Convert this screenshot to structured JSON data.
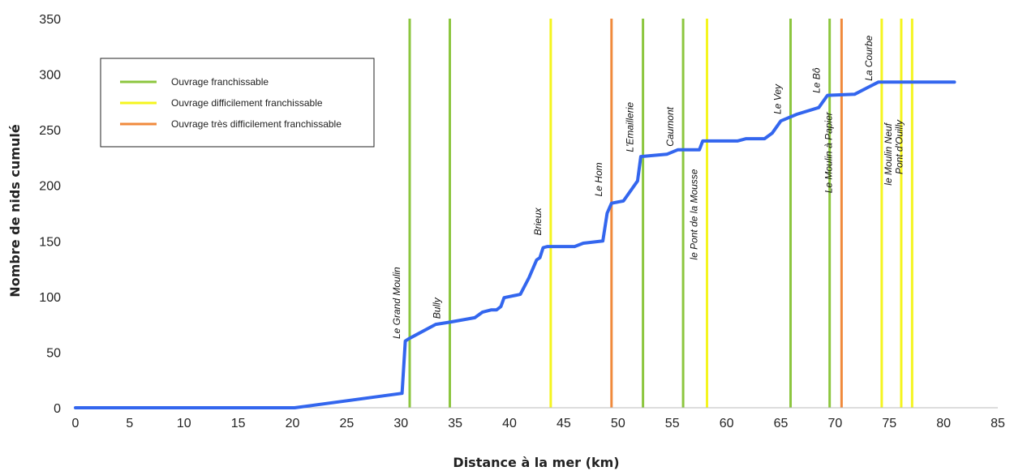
{
  "chart_data": {
    "type": "line",
    "title": "",
    "xlabel": "Distance à la mer (km)",
    "ylabel": "Nombre de nids cumulé",
    "xlim": [
      0,
      85
    ],
    "ylim": [
      0,
      350
    ],
    "xticks": [
      0,
      5,
      10,
      15,
      20,
      25,
      30,
      35,
      40,
      45,
      50,
      55,
      60,
      65,
      70,
      75,
      80,
      85
    ],
    "yticks": [
      0,
      50,
      100,
      150,
      200,
      250,
      300,
      350
    ],
    "grid": false,
    "legend_position": "top-left",
    "series": [
      {
        "color": "#3366ee",
        "points": [
          [
            0,
            0
          ],
          [
            20.2,
            0
          ],
          [
            30.1,
            13
          ],
          [
            30.4,
            60
          ],
          [
            30.7,
            62
          ],
          [
            33.2,
            75
          ],
          [
            34.5,
            77
          ],
          [
            36.8,
            81
          ],
          [
            37.5,
            86
          ],
          [
            38.3,
            88
          ],
          [
            38.8,
            88
          ],
          [
            39.2,
            91
          ],
          [
            39.5,
            99
          ],
          [
            41.0,
            102
          ],
          [
            41.8,
            117
          ],
          [
            42.5,
            133
          ],
          [
            42.8,
            135
          ],
          [
            43.1,
            144
          ],
          [
            43.5,
            145
          ],
          [
            46.0,
            145
          ],
          [
            46.8,
            148
          ],
          [
            48.6,
            150
          ],
          [
            49.0,
            175
          ],
          [
            49.4,
            184
          ],
          [
            50.5,
            186
          ],
          [
            51.8,
            204
          ],
          [
            52.1,
            226
          ],
          [
            54.5,
            228
          ],
          [
            55.5,
            232
          ],
          [
            57.5,
            232
          ],
          [
            57.8,
            240
          ],
          [
            61.0,
            240
          ],
          [
            61.8,
            242
          ],
          [
            63.5,
            242
          ],
          [
            64.2,
            247
          ],
          [
            65.0,
            258
          ],
          [
            66.5,
            264
          ],
          [
            68.5,
            270
          ],
          [
            69.3,
            281
          ],
          [
            71.8,
            282
          ],
          [
            73.0,
            288
          ],
          [
            74.0,
            293
          ],
          [
            81.0,
            293
          ]
        ]
      }
    ],
    "legend": [
      {
        "label": "Ouvrage franchissable",
        "color": "#8cc63f"
      },
      {
        "label": "Ouvrage difficilement franchissable",
        "color": "#f5f51e"
      },
      {
        "label": "Ouvrage très difficilement franchissable",
        "color": "#f08a3c"
      }
    ],
    "vlines": [
      {
        "x": 30.8,
        "color": "#8cc63f",
        "label": "Le Grand Moulin",
        "label_y": 62
      },
      {
        "x": 34.5,
        "color": "#8cc63f",
        "label": "Bully",
        "label_y": 80
      },
      {
        "x": 43.8,
        "color": "#f5f51e",
        "label": "Brieux",
        "label_y": 155
      },
      {
        "x": 49.4,
        "color": "#f08a3c",
        "label": "Le Hom",
        "label_y": 190
      },
      {
        "x": 52.3,
        "color": "#8cc63f",
        "label": "L'Emaillerie",
        "label_y": 230
      },
      {
        "x": 56.0,
        "color": "#8cc63f",
        "label": "Caumont",
        "label_y": 235
      },
      {
        "x": 58.2,
        "color": "#f5f51e",
        "label": "le Pont de la Mousse",
        "label_y": 133
      },
      {
        "x": 65.9,
        "color": "#8cc63f",
        "label": "Le Vey",
        "label_y": 264
      },
      {
        "x": 69.5,
        "color": "#8cc63f",
        "label": "Le Bô",
        "label_y": 283
      },
      {
        "x": 70.6,
        "color": "#f08a3c",
        "label": "Le Moulin à Papier",
        "label_y": 193
      },
      {
        "x": 74.3,
        "color": "#f5f51e",
        "label": "La Courbe",
        "label_y": 294
      },
      {
        "x": 76.1,
        "color": "#f5f51e",
        "label": "le Moulin Neuf",
        "label_y": 200
      },
      {
        "x": 77.1,
        "color": "#f5f51e",
        "label": "Pont d'Ouilly",
        "label_y": 210
      }
    ]
  }
}
